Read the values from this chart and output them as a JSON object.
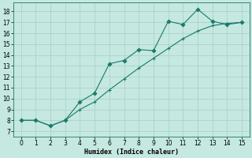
{
  "line_zigzag_x": [
    0,
    1,
    2,
    3,
    4,
    5,
    6,
    7,
    8,
    9,
    10,
    11,
    12,
    13,
    14,
    15
  ],
  "line_zigzag_y": [
    8.0,
    8.0,
    7.5,
    8.0,
    9.7,
    10.5,
    13.2,
    13.5,
    14.5,
    14.4,
    17.1,
    16.8,
    18.2,
    17.1,
    16.8,
    17.0
  ],
  "line_grad_x": [
    0,
    1,
    2,
    3,
    4,
    5,
    6,
    7,
    8,
    9,
    10,
    11,
    12,
    13,
    14,
    15
  ],
  "line_grad_y": [
    8.0,
    8.0,
    7.5,
    8.0,
    9.0,
    9.7,
    10.8,
    11.8,
    12.8,
    13.7,
    14.6,
    15.5,
    16.2,
    16.7,
    16.9,
    17.0
  ],
  "line_color": "#1a7a6a",
  "bg_color": "#c5e8e0",
  "grid_color": "#a8cfc7",
  "xlabel": "Humidex (Indice chaleur)",
  "xlim": [
    -0.5,
    15.5
  ],
  "ylim": [
    6.5,
    18.8
  ],
  "yticks": [
    7,
    8,
    9,
    10,
    11,
    12,
    13,
    14,
    15,
    16,
    17,
    18
  ],
  "xticks": [
    0,
    1,
    2,
    3,
    4,
    5,
    6,
    7,
    8,
    9,
    10,
    11,
    12,
    13,
    14,
    15
  ],
  "tick_fontsize": 5.5,
  "xlabel_fontsize": 6.0
}
